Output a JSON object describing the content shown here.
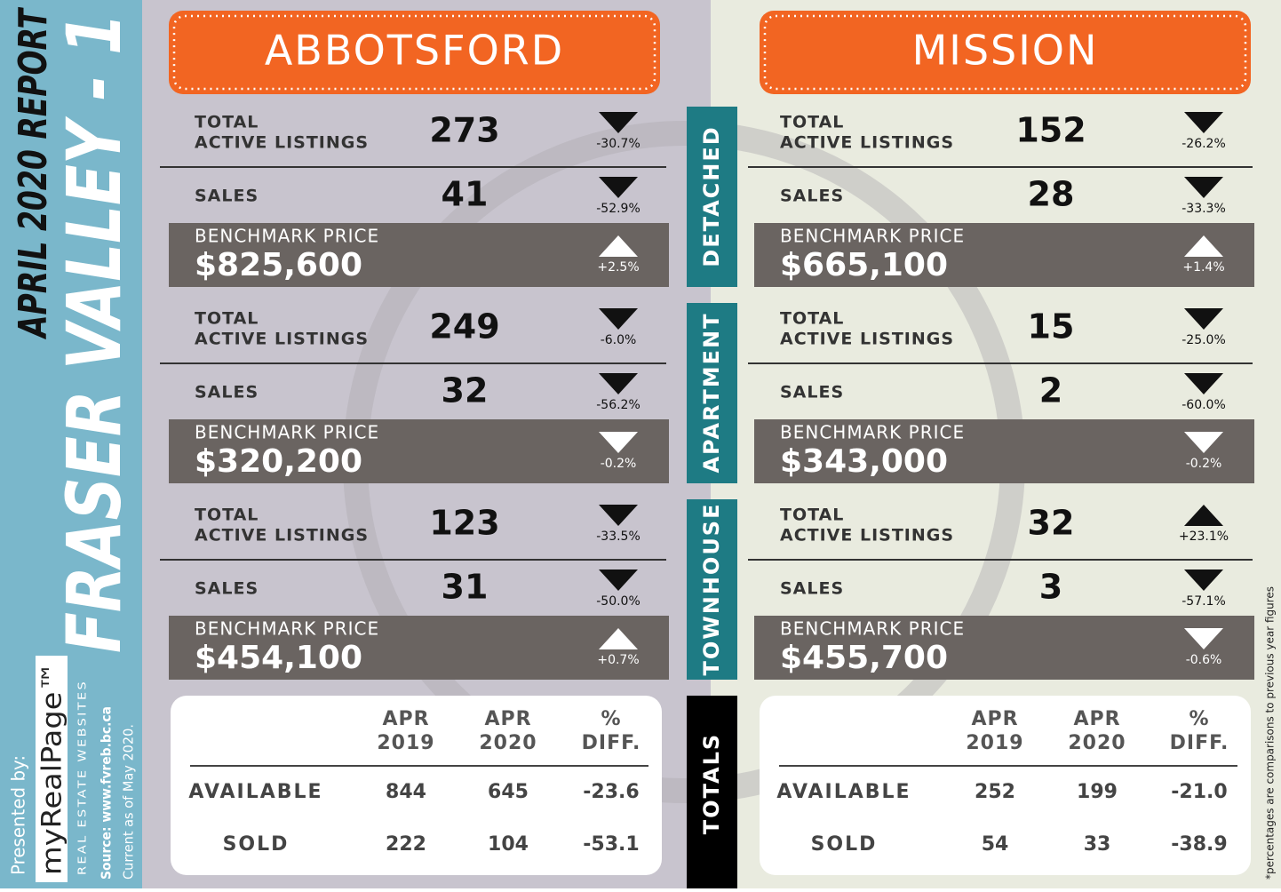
{
  "sidebar": {
    "report": "APRIL 2020 REPORT",
    "title": "FRASER VALLEY - 1",
    "presented": "Presented by:",
    "brand": "myRealPage™",
    "tagline": "REAL ESTATE WEBSITES",
    "source": "Source: www.fvreb.bc.ca",
    "current": "Current as of May 2020."
  },
  "footnote": "*percentages are comparisons to previous year figures",
  "labels": {
    "total": "TOTAL",
    "active": "ACTIVE LISTINGS",
    "sales": "SALES",
    "benchmark": "BENCHMARK PRICE"
  },
  "categories": [
    "DETACHED",
    "APARTMENT",
    "TOWNHOUSE"
  ],
  "totals_label": "TOTALS",
  "regions": [
    {
      "name": "ABBOTSFORD",
      "sections": [
        {
          "listings": "273",
          "listings_change": "-30.7%",
          "sales": "41",
          "sales_change": "-52.9%",
          "price": "$825,600",
          "price_change": "+2.5%"
        },
        {
          "listings": "249",
          "listings_change": "-6.0%",
          "sales": "32",
          "sales_change": "-56.2%",
          "price": "$320,200",
          "price_change": "-0.2%"
        },
        {
          "listings": "123",
          "listings_change": "-33.5%",
          "sales": "31",
          "sales_change": "-50.0%",
          "price": "$454,100",
          "price_change": "+0.7%"
        }
      ],
      "totals": {
        "columns": [
          [
            "APR",
            "2019"
          ],
          [
            "APR",
            "2020"
          ],
          [
            "%",
            "DIFF."
          ]
        ],
        "rows": [
          [
            "AVAILABLE",
            "844",
            "645",
            "-23.6"
          ],
          [
            "SOLD",
            "222",
            "104",
            "-53.1"
          ]
        ]
      }
    },
    {
      "name": "MISSION",
      "sections": [
        {
          "listings": "152",
          "listings_change": "-26.2%",
          "sales": "28",
          "sales_change": "-33.3%",
          "price": "$665,100",
          "price_change": "+1.4%"
        },
        {
          "listings": "15",
          "listings_change": "-25.0%",
          "sales": "2",
          "sales_change": "-60.0%",
          "price": "$343,000",
          "price_change": "-0.2%"
        },
        {
          "listings": "32",
          "listings_change": "+23.1%",
          "sales": "3",
          "sales_change": "-57.1%",
          "price": "$455,700",
          "price_change": "-0.6%"
        }
      ],
      "totals": {
        "columns": [
          [
            "APR",
            "2019"
          ],
          [
            "APR",
            "2020"
          ],
          [
            "%",
            "DIFF."
          ]
        ],
        "rows": [
          [
            "AVAILABLE",
            "252",
            "199",
            "-21.0"
          ],
          [
            "SOLD",
            "54",
            "33",
            "-38.9"
          ]
        ]
      }
    }
  ]
}
